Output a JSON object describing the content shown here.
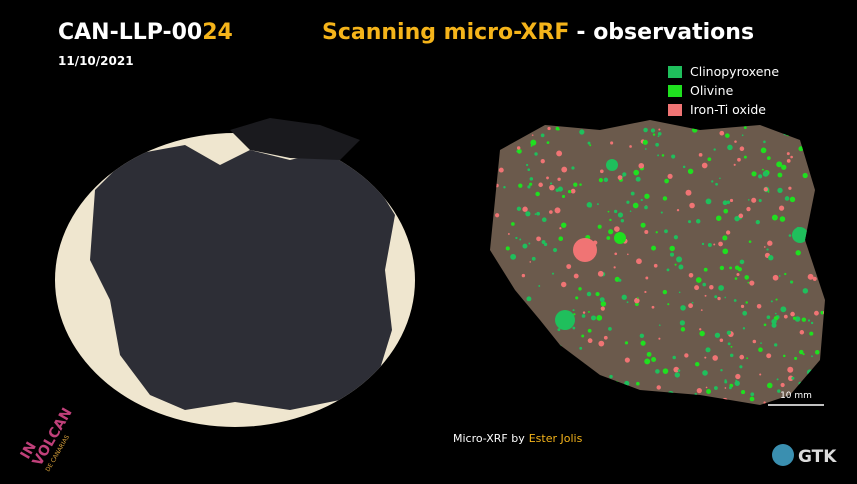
{
  "header": {
    "sample_id_prefix": "CAN-LLP-00",
    "sample_id_suffix": "24",
    "date": "11/10/2021",
    "title_highlight": "Scanning micro-XRF",
    "title_rest": "- observations"
  },
  "legend": [
    {
      "label": "Clinopyroxene",
      "color": "#1fbf5c"
    },
    {
      "label": "Olivine",
      "color": "#1fe01f"
    },
    {
      "label": "Iron-Ti oxide",
      "color": "#f07474"
    }
  ],
  "scale_bar": "10 mm",
  "credit": {
    "text": "Micro-XRF by",
    "author": "Ester Jolis"
  },
  "logos": {
    "left": [
      "IN",
      "VOLCAN",
      "DE CANARIAS"
    ],
    "right": "GTK"
  }
}
